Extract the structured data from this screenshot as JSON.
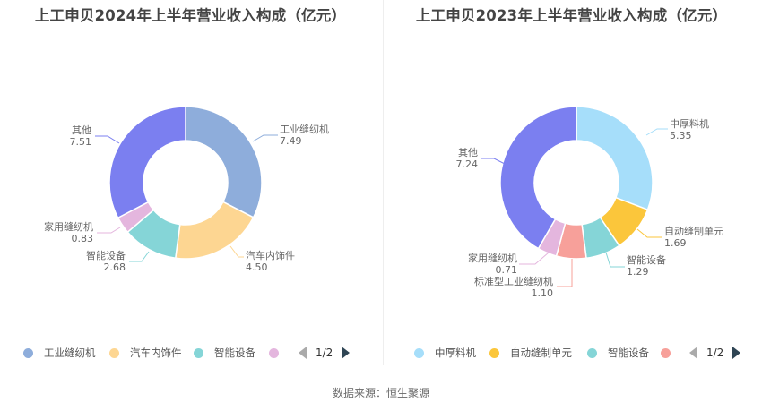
{
  "source": "数据来源：恒生聚源",
  "chart_data": [
    {
      "type": "pie",
      "variant": "donut",
      "title": "上工申贝2024年上半年营业收入构成（亿元）",
      "unit": "亿元",
      "categories": [
        "工业缝纫机",
        "汽车内饰件",
        "智能设备",
        "家用缝纫机",
        "其他"
      ],
      "values": [
        7.49,
        4.5,
        2.68,
        0.83,
        7.51
      ],
      "colors": [
        "#8eaddb",
        "#fdd692",
        "#85d5d7",
        "#e4b6de",
        "#7b7ff0"
      ],
      "legend": {
        "position": "bottom",
        "visible_items": [
          "工业缝纫机",
          "汽车内饰件",
          "智能设备",
          ""
        ],
        "page": "1/2"
      }
    },
    {
      "type": "pie",
      "variant": "donut",
      "title": "上工申贝2023年上半年营业收入构成（亿元）",
      "unit": "亿元",
      "categories": [
        "中厚料机",
        "自动缝制单元",
        "智能设备",
        "标准型工业缝纫机",
        "家用缝纫机",
        "其他"
      ],
      "values": [
        5.35,
        1.69,
        1.29,
        1.1,
        0.71,
        7.24
      ],
      "colors": [
        "#a6defa",
        "#fbc63b",
        "#85d5d7",
        "#f7a09a",
        "#e4b6de",
        "#7b7ff0"
      ],
      "legend": {
        "position": "bottom",
        "visible_items": [
          "中厚料机",
          "自动缝制单元",
          "智能设备",
          ""
        ],
        "page": "1/2"
      }
    }
  ],
  "labels_left": [
    {
      "name": "工业缝纫机",
      "value": "7.49"
    },
    {
      "name": "汽车内饰件",
      "value": "4.50"
    },
    {
      "name": "智能设备",
      "value": "2.68"
    },
    {
      "name": "家用缝纫机",
      "value": "0.83"
    },
    {
      "name": "其他",
      "value": "7.51"
    }
  ],
  "labels_right": [
    {
      "name": "中厚料机",
      "value": "5.35"
    },
    {
      "name": "自动缝制单元",
      "value": "1.69"
    },
    {
      "name": "智能设备",
      "value": "1.29"
    },
    {
      "name": "标准型工业缝纫机",
      "value": "1.10"
    },
    {
      "name": "家用缝纫机",
      "value": "0.71"
    },
    {
      "name": "其他",
      "value": "7.24"
    }
  ]
}
